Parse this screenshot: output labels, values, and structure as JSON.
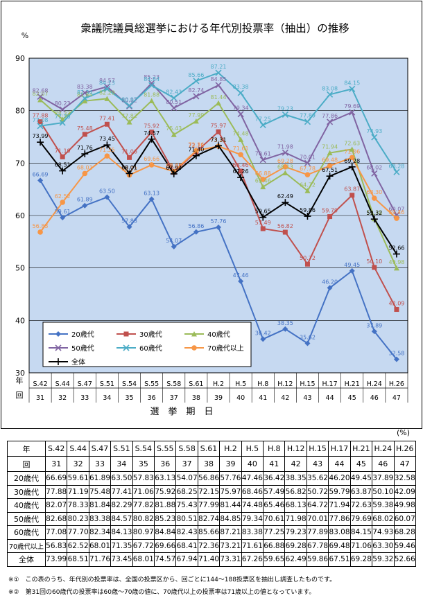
{
  "chart_data": {
    "type": "line",
    "title": "衆議院議員総選挙における年代別投票率（抽出）の推移",
    "ylabel": "%",
    "xlabel": "選　挙　期　日",
    "ylim": [
      30,
      90
    ],
    "yticks": [
      30,
      40,
      50,
      60,
      70,
      80,
      90
    ],
    "axis_header_top": "年",
    "axis_header_bottom": "回",
    "categories": [
      "S.42",
      "S.44",
      "S.47",
      "S.51",
      "S.54",
      "S.55",
      "S.58",
      "S.61",
      "H.2",
      "H.5",
      "H.8",
      "H.12",
      "H.15",
      "H.17",
      "H.21",
      "H.24",
      "H.26"
    ],
    "rounds": [
      "31",
      "32",
      "33",
      "34",
      "35",
      "36",
      "37",
      "38",
      "39",
      "40",
      "41",
      "42",
      "43",
      "44",
      "45",
      "46",
      "47"
    ],
    "legend_position": "bottom-left",
    "series": [
      {
        "name": "20歳代",
        "color": "#4472C4",
        "marker": "diamond",
        "values": [
          66.69,
          59.61,
          61.89,
          63.5,
          57.83,
          63.13,
          54.07,
          56.86,
          57.76,
          47.46,
          36.42,
          38.35,
          35.62,
          46.2,
          49.45,
          37.89,
          32.58
        ]
      },
      {
        "name": "30歳代",
        "color": "#C0504D",
        "marker": "square",
        "values": [
          77.88,
          71.19,
          75.48,
          77.41,
          71.06,
          75.92,
          68.25,
          72.15,
          75.97,
          68.46,
          57.49,
          56.82,
          50.72,
          59.79,
          63.87,
          50.1,
          42.09
        ]
      },
      {
        "name": "40歳代",
        "color": "#9BBB59",
        "marker": "triangle",
        "values": [
          82.07,
          78.33,
          81.84,
          82.29,
          77.82,
          81.88,
          75.43,
          77.99,
          81.44,
          74.48,
          65.46,
          68.13,
          64.72,
          71.94,
          72.63,
          59.38,
          49.98
        ]
      },
      {
        "name": "50歳代",
        "color": "#8064A2",
        "marker": "x",
        "values": [
          82.68,
          80.23,
          83.38,
          84.57,
          80.82,
          85.23,
          80.51,
          82.74,
          84.85,
          79.34,
          70.61,
          71.98,
          70.01,
          77.86,
          79.69,
          68.02,
          60.07
        ]
      },
      {
        "name": "60歳代",
        "color": "#4BACC6",
        "marker": "x",
        "values": [
          77.08,
          77.7,
          82.34,
          84.13,
          80.97,
          84.84,
          82.43,
          85.66,
          87.21,
          83.38,
          77.25,
          79.23,
          77.89,
          83.08,
          84.15,
          74.93,
          68.28
        ]
      },
      {
        "name": "70歳代以上",
        "color": "#F79646",
        "marker": "circle",
        "values": [
          56.83,
          62.52,
          68.01,
          71.35,
          67.72,
          69.66,
          68.41,
          72.36,
          73.21,
          71.61,
          66.88,
          69.28,
          67.78,
          69.48,
          71.06,
          63.3,
          59.46
        ]
      },
      {
        "name": "全体",
        "color": "#000000",
        "marker": "plus",
        "values": [
          73.99,
          68.51,
          71.76,
          73.45,
          68.01,
          74.57,
          67.94,
          71.4,
          73.31,
          67.26,
          59.65,
          62.49,
          59.86,
          67.51,
          69.28,
          59.32,
          52.66
        ]
      }
    ]
  },
  "table": {
    "unit": "(%)",
    "year_label": "年",
    "round_label": "回",
    "total_label": "全体"
  },
  "notes": [
    "※①　この表のうち、年代別の投票率は、全国の投票区から、回ごとに144〜188投票区を抽出し調査したものです。",
    "※②　第31回の60歳代の投票率は60歳〜70歳の値に、70歳代以上の投票率は71歳以上の値となっています。"
  ],
  "colors": {
    "plot_bg": "#C6D9F1",
    "grid": "#000000"
  }
}
